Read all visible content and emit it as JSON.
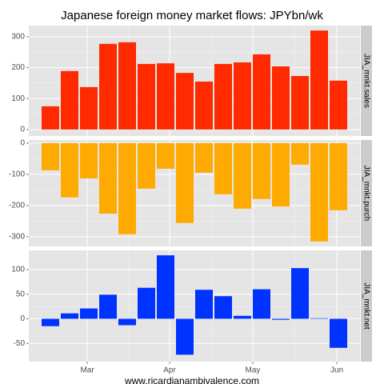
{
  "title": "Japanese foreign money market flows: JPYbn/wk",
  "footer": "www.ricardianambivalence.com",
  "x_tick_labels": [
    "Mar",
    "Apr",
    "May",
    "Jun"
  ],
  "chart_data": [
    {
      "type": "bar",
      "strip": "JIA_mnkt.sales",
      "color": "#ff2a00",
      "categories": [
        null,
        null,
        null,
        null,
        null,
        null,
        null,
        null,
        null,
        null,
        null,
        null,
        null,
        null,
        null,
        null
      ],
      "values": [
        75,
        189,
        137,
        277,
        282,
        212,
        214,
        183,
        155,
        212,
        217,
        243,
        204,
        173,
        320,
        158
      ],
      "ylim": [
        -21,
        336
      ],
      "yticks": [
        0,
        100,
        200,
        300
      ],
      "grid": true
    },
    {
      "type": "bar",
      "strip": "JIA_mnkt.purch",
      "color": "#ffaa00",
      "categories": [
        null,
        null,
        null,
        null,
        null,
        null,
        null,
        null,
        null,
        null,
        null,
        null,
        null,
        null,
        null,
        null
      ],
      "values": [
        -87,
        -174,
        -113,
        -226,
        -292,
        -146,
        -82,
        -256,
        -95,
        -164,
        -210,
        -179,
        -203,
        -69,
        -315,
        -215
      ],
      "ylim": [
        -331,
        10
      ],
      "yticks": [
        -300,
        -200,
        -100,
        0
      ],
      "grid": true
    },
    {
      "type": "bar",
      "strip": "JIA_mnkt.net",
      "color": "#0033ff",
      "categories": [
        null,
        null,
        null,
        null,
        null,
        null,
        null,
        null,
        null,
        null,
        null,
        null,
        null,
        null,
        null,
        null
      ],
      "values": [
        -15,
        11,
        21,
        49,
        -13,
        63,
        129,
        -73,
        59,
        46,
        6,
        60,
        -2,
        103,
        1,
        -59
      ],
      "ylim": [
        -87,
        139
      ],
      "yticks": [
        -50,
        0,
        50,
        100
      ],
      "grid": true
    }
  ]
}
